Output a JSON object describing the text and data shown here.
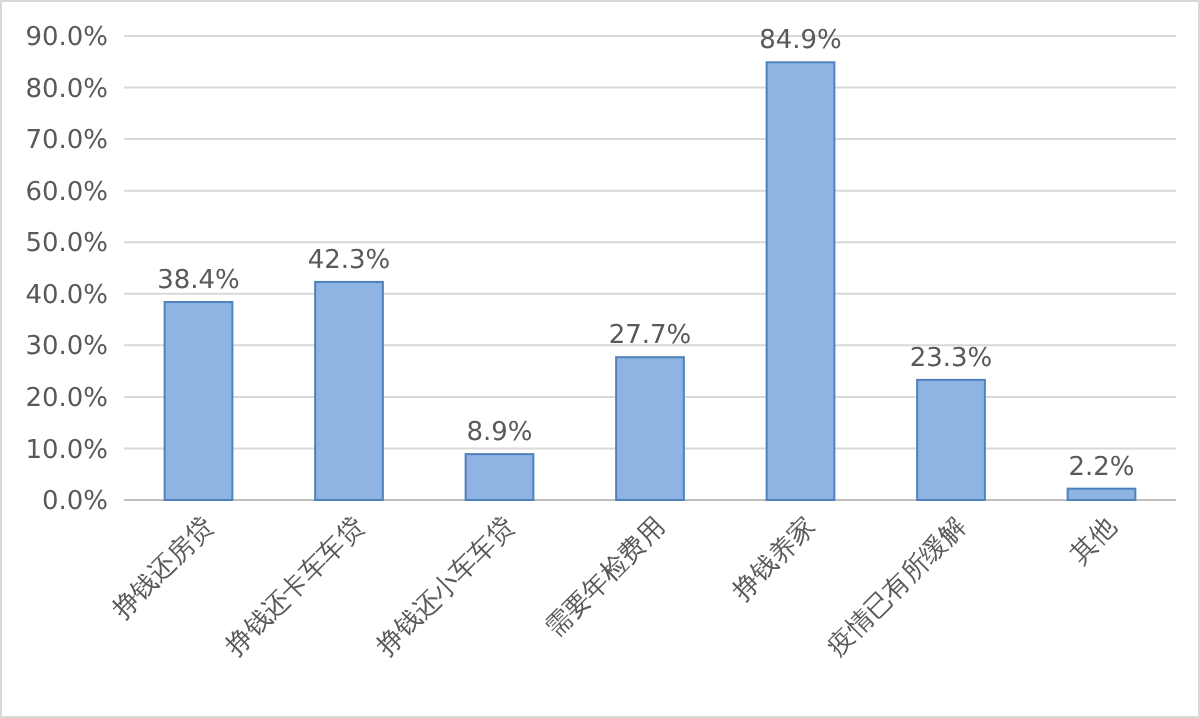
{
  "chart_data": {
    "type": "bar",
    "categories": [
      "挣钱还房贷",
      "挣钱还卡车车贷",
      "挣钱还小车车贷",
      "需要年检费用",
      "挣钱养家",
      "疫情已有所缓解",
      "其他"
    ],
    "values": [
      38.4,
      42.3,
      8.9,
      27.7,
      84.9,
      23.3,
      2.2
    ],
    "value_labels": [
      "38.4%",
      "42.3%",
      "8.9%",
      "27.7%",
      "84.9%",
      "23.3%",
      "2.2%"
    ],
    "color": "#8fb4e3",
    "ylim": [
      0,
      90
    ],
    "yticks": [
      {
        "value": 0,
        "label": "0.0%"
      },
      {
        "value": 10,
        "label": "10.0%"
      },
      {
        "value": 20,
        "label": "20.0%"
      },
      {
        "value": 30,
        "label": "30.0%"
      },
      {
        "value": 40,
        "label": "40.0%"
      },
      {
        "value": 50,
        "label": "50.0%"
      },
      {
        "value": 60,
        "label": "60.0%"
      },
      {
        "value": 70,
        "label": "70.0%"
      },
      {
        "value": 80,
        "label": "80.0%"
      },
      {
        "value": 90,
        "label": "90.0%"
      }
    ],
    "grid": "y"
  }
}
